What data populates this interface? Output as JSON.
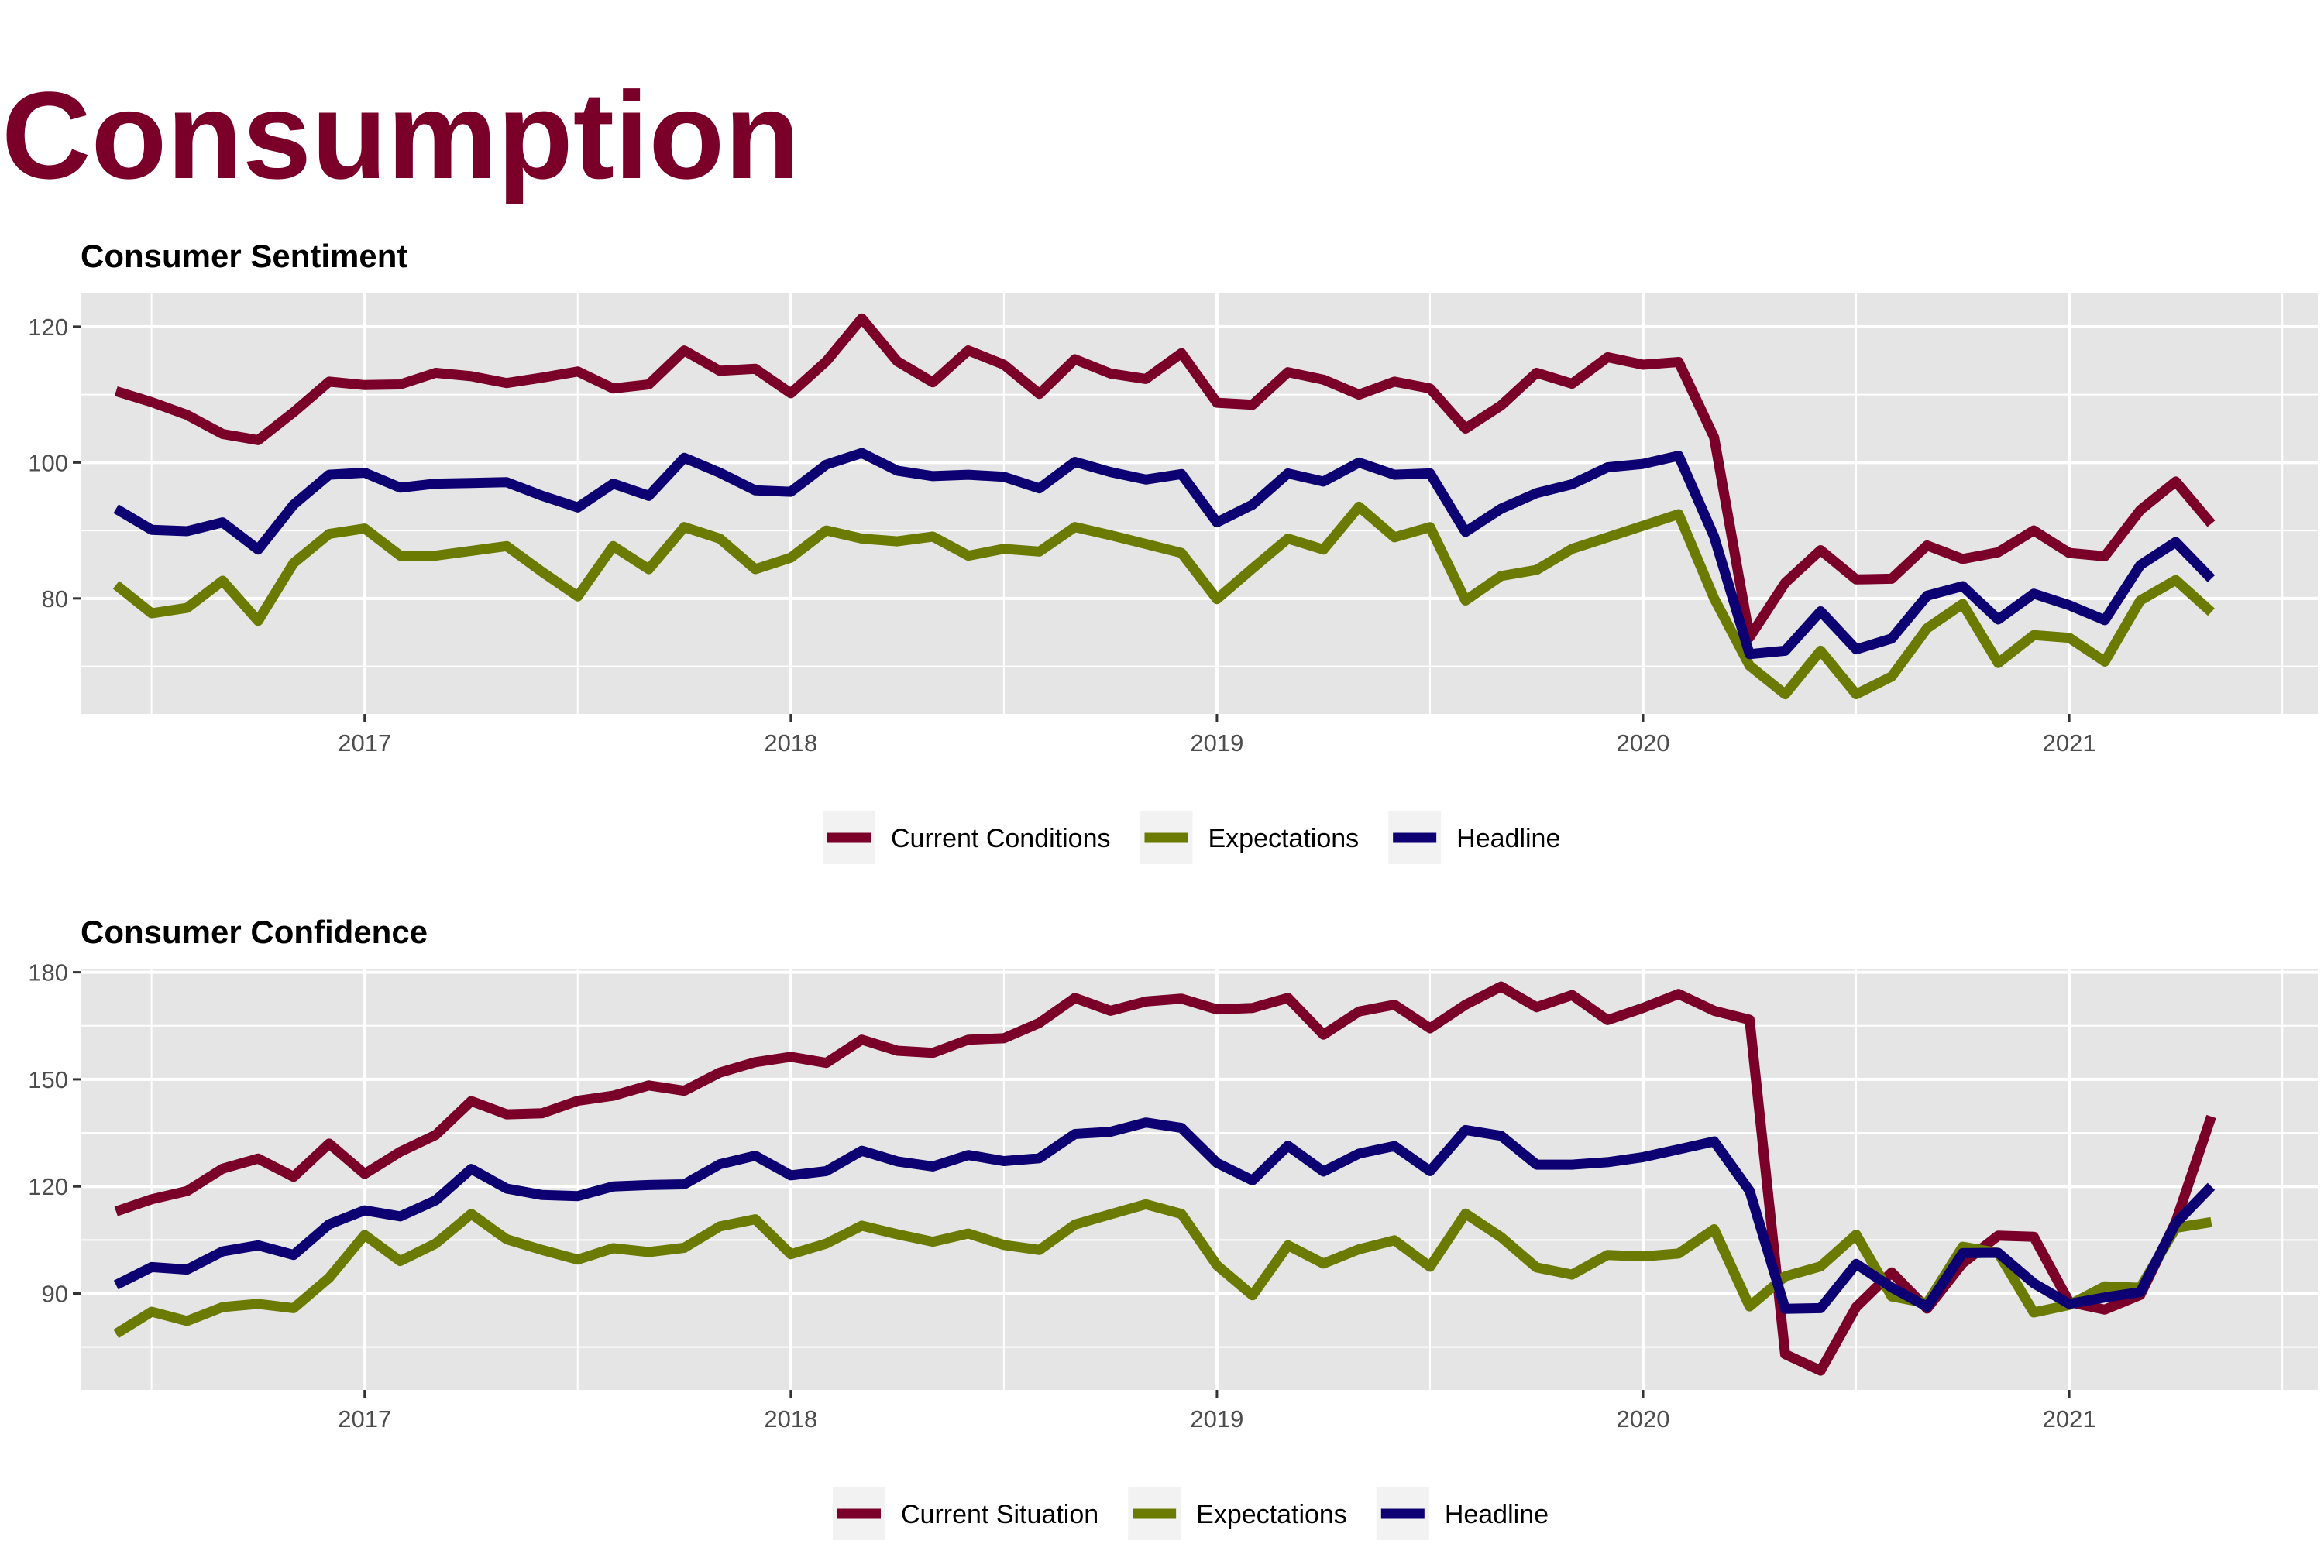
{
  "page": {
    "title": "Consumption"
  },
  "colors": {
    "primary": "#7a0029",
    "green": "#6b7a00",
    "navy": "#0d0073",
    "panel_bg": "#e5e5e5",
    "grid": "#ffffff"
  },
  "chart_data": [
    {
      "type": "line",
      "title": "Consumer Sentiment",
      "x_start": "2016-06",
      "xlim": [
        "2016-05",
        "2021-08"
      ],
      "ylim": [
        63,
        125
      ],
      "y_ticks": [
        80,
        100,
        120
      ],
      "x_ticks": [
        {
          "label": "2017",
          "date": "2017-01"
        },
        {
          "label": "2018",
          "date": "2018-01"
        },
        {
          "label": "2019",
          "date": "2019-01"
        },
        {
          "label": "2020",
          "date": "2020-01"
        },
        {
          "label": "2021",
          "date": "2021-01"
        }
      ],
      "legend_position": "bottom",
      "series": [
        {
          "name": "Current Conditions",
          "color": "#7a0029",
          "values": [
            110.5,
            108.9,
            107.0,
            104.2,
            103.3,
            107.4,
            111.9,
            111.4,
            111.5,
            113.2,
            112.7,
            111.7,
            112.5,
            113.4,
            110.9,
            111.5,
            116.5,
            113.5,
            113.8,
            110.2,
            114.9,
            121.2,
            114.9,
            111.8,
            116.5,
            114.4,
            110.1,
            115.2,
            113.1,
            112.3,
            116.1,
            108.8,
            108.5,
            113.3,
            112.2,
            110.0,
            111.9,
            110.9,
            105.0,
            108.4,
            113.2,
            111.6,
            115.5,
            114.4,
            114.8,
            103.7,
            74.3,
            82.3,
            87.1,
            82.8,
            82.9,
            87.8,
            85.8,
            86.8,
            90.0,
            86.7,
            86.2,
            93.0,
            97.2,
            91.0
          ]
        },
        {
          "name": "Expectations",
          "color": "#6b7a00",
          "values": [
            82.0,
            77.8,
            78.6,
            82.6,
            76.7,
            85.2,
            89.5,
            90.3,
            86.3,
            86.3,
            87.0,
            87.7,
            83.9,
            80.3,
            87.7,
            84.3,
            90.5,
            88.8,
            84.3,
            86.0,
            90.0,
            88.8,
            88.4,
            89.1,
            86.3,
            87.3,
            86.9,
            90.5,
            89.3,
            88.0,
            86.7,
            79.9,
            84.4,
            88.8,
            87.2,
            93.5,
            89.0,
            90.5,
            79.7,
            83.3,
            84.2,
            87.3,
            89.0,
            90.7,
            92.4,
            80.0,
            70.1,
            65.9,
            72.3,
            65.9,
            68.5,
            75.6,
            79.2,
            70.5,
            74.6,
            74.2,
            70.7,
            79.7,
            82.7,
            78.0
          ]
        },
        {
          "name": "Headline",
          "color": "#0d0073",
          "values": [
            93.2,
            90.1,
            89.9,
            91.2,
            87.2,
            93.8,
            98.2,
            98.5,
            96.3,
            96.9,
            97.0,
            97.1,
            95.1,
            93.4,
            96.9,
            95.1,
            100.7,
            98.5,
            95.9,
            95.7,
            99.7,
            101.4,
            98.8,
            98.0,
            98.2,
            97.9,
            96.2,
            100.1,
            98.6,
            97.5,
            98.3,
            91.2,
            93.8,
            98.4,
            97.2,
            100.0,
            98.2,
            98.4,
            89.8,
            93.2,
            95.5,
            96.8,
            99.3,
            99.8,
            101.0,
            89.1,
            71.8,
            72.3,
            78.1,
            72.5,
            74.1,
            80.4,
            81.8,
            76.9,
            80.7,
            79.0,
            76.8,
            84.9,
            88.3,
            82.9
          ]
        }
      ]
    },
    {
      "type": "line",
      "title": "Consumer Confidence",
      "x_start": "2016-06",
      "xlim": [
        "2016-05",
        "2021-08"
      ],
      "ylim": [
        63,
        181
      ],
      "y_ticks": [
        90,
        120,
        150,
        180
      ],
      "x_ticks": [
        {
          "label": "2017",
          "date": "2017-01"
        },
        {
          "label": "2018",
          "date": "2018-01"
        },
        {
          "label": "2019",
          "date": "2019-01"
        },
        {
          "label": "2020",
          "date": "2020-01"
        },
        {
          "label": "2021",
          "date": "2021-01"
        }
      ],
      "legend_position": "bottom",
      "series": [
        {
          "name": "Current Situation",
          "color": "#7a0029",
          "values": [
            113.0,
            116.4,
            118.7,
            125.0,
            127.8,
            122.7,
            132.0,
            123.5,
            129.7,
            134.4,
            143.9,
            140.2,
            140.5,
            144.0,
            145.4,
            148.3,
            146.8,
            151.9,
            154.8,
            156.3,
            154.6,
            161.1,
            158.0,
            157.4,
            161.1,
            161.5,
            165.8,
            172.8,
            169.2,
            171.8,
            172.6,
            169.6,
            170.0,
            172.8,
            162.5,
            169.0,
            170.9,
            164.3,
            170.9,
            176.0,
            170.2,
            173.6,
            166.6,
            170.0,
            173.9,
            169.2,
            166.7,
            73.0,
            68.4,
            86.2,
            95.9,
            85.8,
            98.5,
            106.2,
            105.9,
            87.6,
            85.5,
            89.6,
            110.1,
            139.6
          ]
        },
        {
          "name": "Expectations",
          "color": "#6b7a00",
          "values": [
            78.7,
            84.9,
            82.3,
            86.2,
            87.1,
            85.9,
            94.4,
            106.4,
            99.1,
            104.0,
            112.3,
            105.2,
            102.2,
            99.5,
            102.7,
            101.6,
            102.8,
            108.8,
            110.8,
            101.0,
            104.0,
            109.0,
            106.6,
            104.5,
            106.8,
            103.6,
            102.2,
            109.3,
            112.2,
            115.0,
            112.3,
            97.9,
            89.5,
            103.5,
            98.4,
            102.4,
            104.9,
            97.5,
            112.4,
            105.8,
            97.3,
            95.3,
            100.8,
            100.4,
            101.2,
            108.0,
            86.4,
            94.8,
            97.6,
            106.5,
            89.2,
            87.3,
            103.1,
            101.4,
            84.7,
            86.8,
            92.0,
            91.6,
            108.4,
            110.0
          ]
        },
        {
          "name": "Headline",
          "color": "#0d0073",
          "values": [
            92.4,
            97.4,
            96.7,
            101.8,
            103.5,
            100.8,
            109.4,
            113.3,
            111.6,
            116.1,
            124.9,
            119.4,
            117.6,
            117.3,
            120.0,
            120.4,
            120.6,
            126.2,
            128.6,
            123.1,
            124.3,
            130.0,
            127.0,
            125.6,
            128.8,
            127.1,
            127.9,
            134.7,
            135.3,
            137.9,
            136.4,
            126.6,
            121.7,
            131.4,
            124.2,
            129.2,
            131.3,
            124.3,
            135.8,
            134.2,
            126.1,
            126.1,
            126.8,
            128.2,
            130.4,
            132.6,
            118.8,
            85.7,
            85.9,
            98.3,
            91.7,
            86.3,
            101.3,
            101.4,
            92.9,
            87.1,
            88.9,
            90.4,
            109.7,
            120.0
          ]
        }
      ]
    }
  ]
}
